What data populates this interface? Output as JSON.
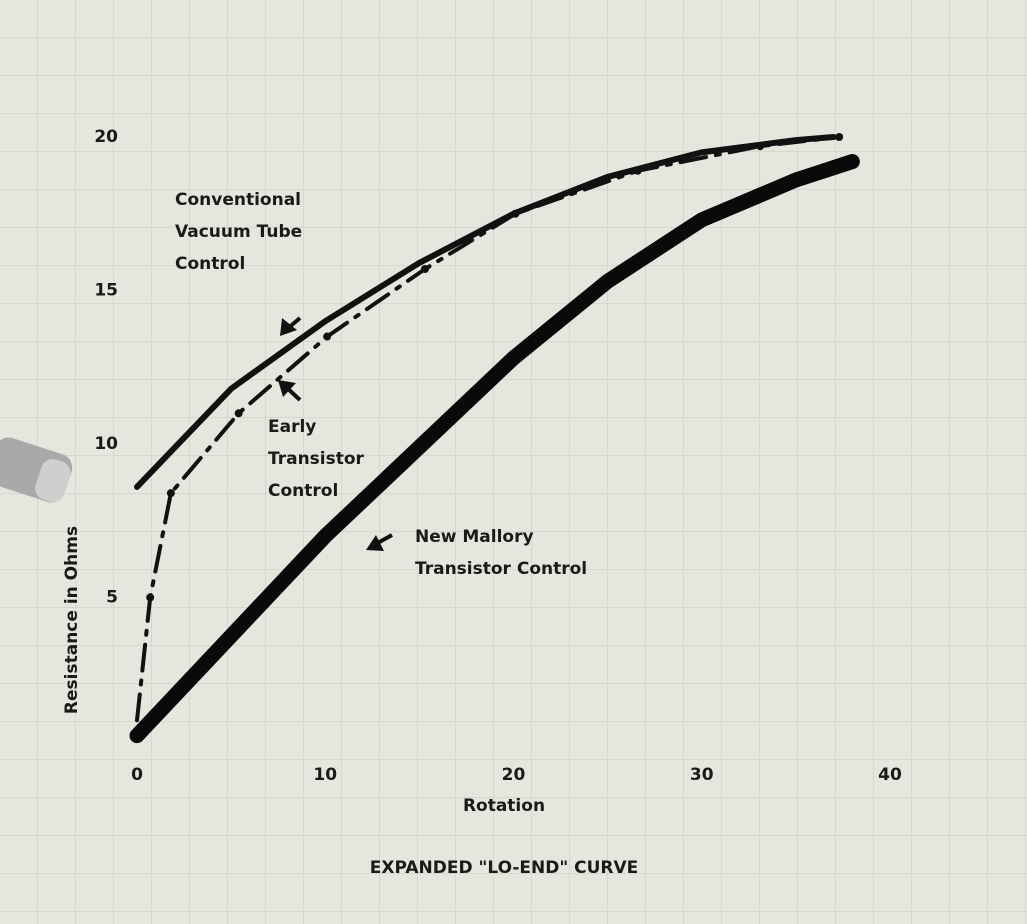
{
  "chart_data": {
    "type": "line",
    "title": "EXPANDED \"LO-END\" CURVE",
    "x_label": "Rotation",
    "y_label": "Resistance in Ohms",
    "xlim": [
      0,
      40
    ],
    "xticks": [
      0,
      10,
      20,
      30,
      40
    ],
    "ylim": [
      0,
      20
    ],
    "yticks": [
      5,
      10,
      15,
      20
    ],
    "series": [
      {
        "label": [
          "Conventional",
          "Vacuum Tube",
          "Control"
        ],
        "color": "#111111",
        "style": "solid",
        "x": [
          0,
          5,
          10,
          15,
          20,
          25,
          30,
          35,
          37
        ],
        "values": [
          8.6,
          11.8,
          14.0,
          15.9,
          17.5,
          18.7,
          19.5,
          19.9,
          20.0
        ]
      },
      {
        "label": [
          "Early",
          "Transistor",
          "Control"
        ],
        "color": "#111111",
        "style": "dashdot",
        "x": [
          0,
          0.7,
          1.8,
          5.4,
          10.1,
          15.3,
          20.1,
          26.6,
          33.1,
          37.3
        ],
        "values": [
          1.0,
          5.0,
          8.4,
          11.0,
          13.5,
          15.7,
          17.5,
          18.9,
          19.7,
          20.0
        ]
      },
      {
        "label": [
          "New Mallory",
          "Transistor Control"
        ],
        "color": "#0a0a0a",
        "style": "thick",
        "x": [
          0,
          10,
          20,
          25,
          30,
          35,
          38
        ],
        "values": [
          0.5,
          7.0,
          12.8,
          15.3,
          17.3,
          18.6,
          19.2
        ]
      }
    ]
  }
}
